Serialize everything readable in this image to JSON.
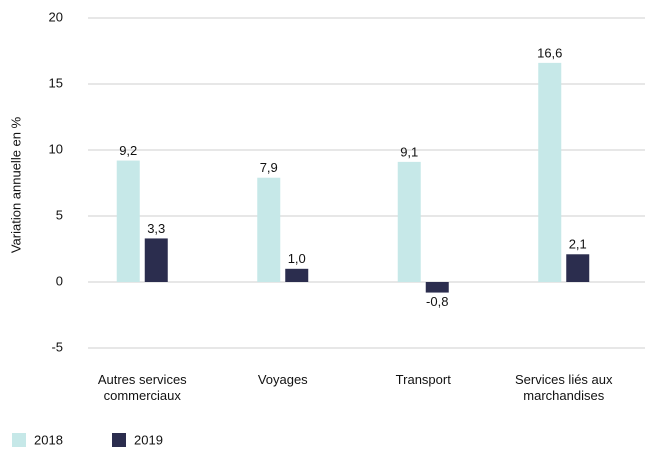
{
  "chart_data": {
    "type": "bar",
    "y_label": "Variation annuelle en %",
    "categories": [
      "Autres services commerciaux",
      "Voyages",
      "Transport",
      "Services liés aux marchandises"
    ],
    "series": [
      {
        "name": "2018",
        "color": "#c6e8e8",
        "values": [
          9.2,
          7.9,
          9.1,
          16.6
        ],
        "value_labels": [
          "9,2",
          "7,9",
          "9,1",
          "16,6"
        ]
      },
      {
        "name": "2019",
        "color": "#2b2d4e",
        "values": [
          3.3,
          1.0,
          -0.8,
          2.1
        ],
        "value_labels": [
          "3,3",
          "1,0",
          "-0,8",
          "2,1"
        ]
      }
    ],
    "ylim": [
      -5,
      20
    ],
    "yticks": [
      -5,
      0,
      5,
      10,
      15,
      20
    ],
    "grid": true,
    "legend": "bottom-left"
  }
}
